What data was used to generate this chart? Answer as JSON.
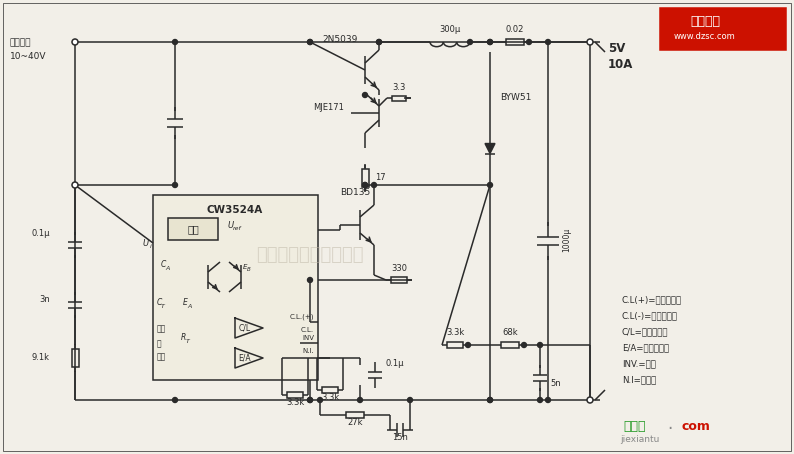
{
  "bg_color": "#f2efe8",
  "line_color": "#2a2a2a",
  "fig_width": 7.94,
  "fig_height": 4.54,
  "dpi": 100,
  "legend_items": [
    "C.L(+)=正电流限制",
    "C.L(-)=负电流限制",
    "C/L=电流限制器",
    "E/A=误差放大器",
    "INV.=反相",
    "N.I=非反相"
  ],
  "watermark": "杭州将睿科技有限公司",
  "logo_line1": "维库一卡",
  "logo_line2": "www.dzsc.com",
  "footer_green": "接线图",
  "footer_small": "jiexiantu",
  "footer_red": "com"
}
